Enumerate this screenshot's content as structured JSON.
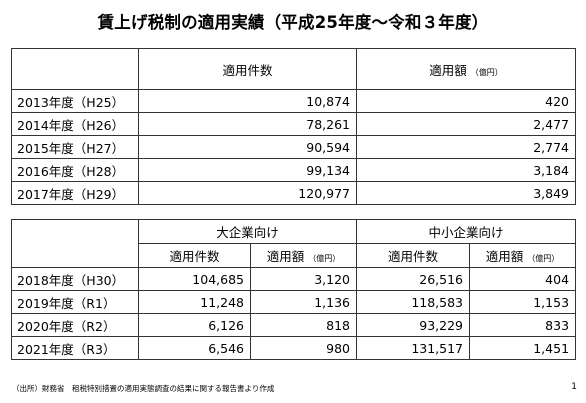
{
  "title": "賃上げ税制の適用実績（平成25年度～令和３年度）",
  "table1": {
    "header_count": "適用件数",
    "header_amount": "適用額",
    "header_amount_unit": "（億円）",
    "rows": [
      {
        "year": "2013年度（H25）",
        "count": "10,874",
        "amount": "420"
      },
      {
        "year": "2014年度（H26）",
        "count": "78,261",
        "amount": "2,477"
      },
      {
        "year": "2015年度（H27）",
        "count": "90,594",
        "amount": "2,774"
      },
      {
        "year": "2016年度（H28）",
        "count": "99,134",
        "amount": "3,184"
      },
      {
        "year": "2017年度（H29）",
        "count": "120,977",
        "amount": "3,849"
      }
    ]
  },
  "table2": {
    "group_large": "大企業向け",
    "group_sme": "中小企業向け",
    "header_count": "適用件数",
    "header_amount": "適用額",
    "header_amount_unit": "（億円）",
    "rows": [
      {
        "year": "2018年度（H30）",
        "large_count": "104,685",
        "large_amount": "3,120",
        "sme_count": "26,516",
        "sme_amount": "404"
      },
      {
        "year": "2019年度（R1）",
        "large_count": "11,248",
        "large_amount": "1,136",
        "sme_count": "118,583",
        "sme_amount": "1,153"
      },
      {
        "year": "2020年度（R2）",
        "large_count": "6,126",
        "large_amount": "818",
        "sme_count": "93,229",
        "sme_amount": "833"
      },
      {
        "year": "2021年度（R3）",
        "large_count": "6,546",
        "large_amount": "980",
        "sme_count": "131,517",
        "sme_amount": "1,451"
      }
    ]
  },
  "source": "（出所）財務省　租税特別措置の適用実態調査の結果に関する報告書より作成",
  "page_number": "1"
}
